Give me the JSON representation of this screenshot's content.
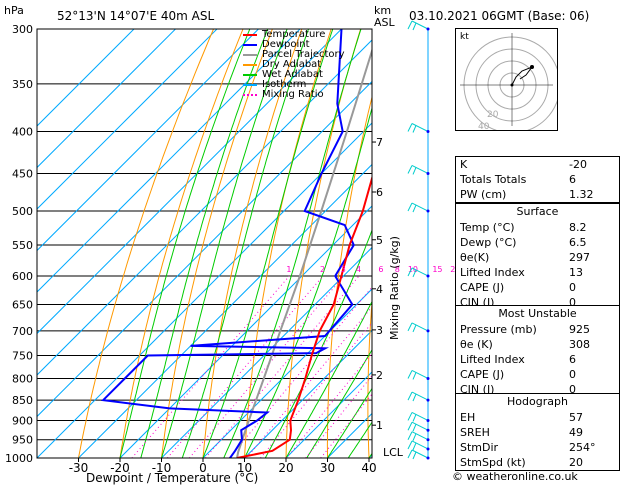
{
  "header": {
    "hpa_label": "hPa",
    "location": "52°13'N 14°07'E 40m ASL",
    "km_label": "km",
    "asl_label": "ASL",
    "datetime": "03.10.2021 06GMT (Base: 06)"
  },
  "legend": [
    {
      "label": "Temperature",
      "color": "#ff0000"
    },
    {
      "label": "Dewpoint",
      "color": "#0000ff"
    },
    {
      "label": "Parcel Trajectory",
      "color": "#999999"
    },
    {
      "label": "Dry Adiabat",
      "color": "#ff9900"
    },
    {
      "label": "Wet Adiabat",
      "color": "#00cc00"
    },
    {
      "label": "Isotherm",
      "color": "#00aaff"
    },
    {
      "label": "Mixing Ratio",
      "color": "#ff00cc"
    }
  ],
  "colors": {
    "temperature": "#ff0000",
    "dewpoint": "#0000ff",
    "parcel": "#999999",
    "dry_adiabat": "#ff9900",
    "wet_adiabat": "#00cc00",
    "isotherm": "#00aaff",
    "mixing_ratio": "#ff00cc",
    "wind": "#00cccc"
  },
  "chart_data": {
    "type": "skew-t",
    "xlabel": "Dewpoint / Temperature (°C)",
    "ylabel_left": "hPa",
    "ylabel_right": "Mixing Ratio (g/kg)",
    "x_ticks": [
      -30,
      -20,
      -10,
      0,
      10,
      20,
      30,
      40
    ],
    "pressure_ticks": [
      300,
      350,
      400,
      450,
      500,
      550,
      600,
      650,
      700,
      750,
      800,
      850,
      900,
      950,
      1000
    ],
    "km_ticks": [
      {
        "km": "1",
        "p": 912
      },
      {
        "km": "2",
        "p": 792
      },
      {
        "km": "3",
        "p": 698
      },
      {
        "km": "4",
        "p": 622
      },
      {
        "km": "5",
        "p": 542
      },
      {
        "km": "6",
        "p": 474
      },
      {
        "km": "7",
        "p": 412
      }
    ],
    "lcl": {
      "label": "LCL",
      "p": 983
    },
    "mixing_ratio_labels": [
      "1",
      "2",
      "3",
      "4",
      "6",
      "8",
      "10",
      "15",
      "20",
      "25"
    ],
    "mixing_ratio_values": [
      1,
      2,
      3,
      4,
      6,
      8,
      10,
      15,
      20,
      25
    ],
    "temperature_profile": [
      {
        "p": 1000,
        "t": 8.2
      },
      {
        "p": 980,
        "t": 15.0
      },
      {
        "p": 950,
        "t": 16.5
      },
      {
        "p": 925,
        "t": 14.5
      },
      {
        "p": 900,
        "t": 12.0
      },
      {
        "p": 850,
        "t": 9.0
      },
      {
        "p": 800,
        "t": 5.5
      },
      {
        "p": 750,
        "t": 1.5
      },
      {
        "p": 700,
        "t": -2.5
      },
      {
        "p": 650,
        "t": -5.5
      },
      {
        "p": 600,
        "t": -10.5
      },
      {
        "p": 550,
        "t": -16.0
      },
      {
        "p": 500,
        "t": -21.0
      },
      {
        "p": 450,
        "t": -27.5
      },
      {
        "p": 400,
        "t": -35.0
      },
      {
        "p": 350,
        "t": -43.0
      },
      {
        "p": 300,
        "t": -52.0
      }
    ],
    "dewpoint_profile": [
      {
        "p": 1000,
        "t": 6.5
      },
      {
        "p": 980,
        "t": 6.0
      },
      {
        "p": 950,
        "t": 5.0
      },
      {
        "p": 925,
        "t": 2.5
      },
      {
        "p": 900,
        "t": 4.0
      },
      {
        "p": 880,
        "t": 4.5
      },
      {
        "p": 870,
        "t": -20.0
      },
      {
        "p": 850,
        "t": -38.0
      },
      {
        "p": 800,
        "t": -38.0
      },
      {
        "p": 750,
        "t": -38.0
      },
      {
        "p": 745,
        "t": 2.0
      },
      {
        "p": 735,
        "t": 3.0
      },
      {
        "p": 730,
        "t": -30.0
      },
      {
        "p": 710,
        "t": 0.0
      },
      {
        "p": 650,
        "t": -1.0
      },
      {
        "p": 600,
        "t": -12.0
      },
      {
        "p": 550,
        "t": -15.0
      },
      {
        "p": 520,
        "t": -22.0
      },
      {
        "p": 500,
        "t": -35.0
      },
      {
        "p": 450,
        "t": -40.0
      },
      {
        "p": 400,
        "t": -45.0
      },
      {
        "p": 370,
        "t": -53.0
      },
      {
        "p": 300,
        "t": -70.0
      }
    ],
    "parcel_profile": [
      {
        "p": 1000,
        "t": 8.2
      },
      {
        "p": 983,
        "t": 7.0
      },
      {
        "p": 900,
        "t": 2.0
      },
      {
        "p": 800,
        "t": -4.5
      },
      {
        "p": 700,
        "t": -12.0
      },
      {
        "p": 600,
        "t": -20.5
      },
      {
        "p": 500,
        "t": -31.0
      },
      {
        "p": 400,
        "t": -44.0
      },
      {
        "p": 300,
        "t": -61.0
      }
    ],
    "wind_barb_pressures": [
      1000,
      975,
      950,
      925,
      900,
      850,
      800,
      700,
      600,
      500,
      450,
      400,
      300
    ]
  },
  "hodograph": {
    "label": "kt",
    "ring_labels": [
      "40",
      "20"
    ]
  },
  "indices": [
    {
      "label": "K",
      "value": "-20"
    },
    {
      "label": "Totals Totals",
      "value": "6"
    },
    {
      "label": "PW (cm)",
      "value": "1.32"
    }
  ],
  "surface": {
    "title": "Surface",
    "rows": [
      {
        "label": "Temp (°C)",
        "value": "8.2"
      },
      {
        "label": "Dewp (°C)",
        "value": "6.5"
      },
      {
        "label": "θe(K)",
        "value": "297"
      },
      {
        "label": "Lifted Index",
        "value": "13"
      },
      {
        "label": "CAPE (J)",
        "value": "0"
      },
      {
        "label": "CIN (J)",
        "value": "0"
      }
    ]
  },
  "most_unstable": {
    "title": "Most Unstable",
    "rows": [
      {
        "label": "Pressure (mb)",
        "value": "925"
      },
      {
        "label": "θe (K)",
        "value": "308"
      },
      {
        "label": "Lifted Index",
        "value": "6"
      },
      {
        "label": "CAPE (J)",
        "value": "0"
      },
      {
        "label": "CIN (J)",
        "value": "0"
      }
    ]
  },
  "hodograph_table": {
    "title": "Hodograph",
    "rows": [
      {
        "label": "EH",
        "value": "57"
      },
      {
        "label": "SREH",
        "value": "49"
      },
      {
        "label": "StmDir",
        "value": "254°"
      },
      {
        "label": "StmSpd (kt)",
        "value": "20"
      }
    ]
  },
  "copyright": "© weatheronline.co.uk"
}
